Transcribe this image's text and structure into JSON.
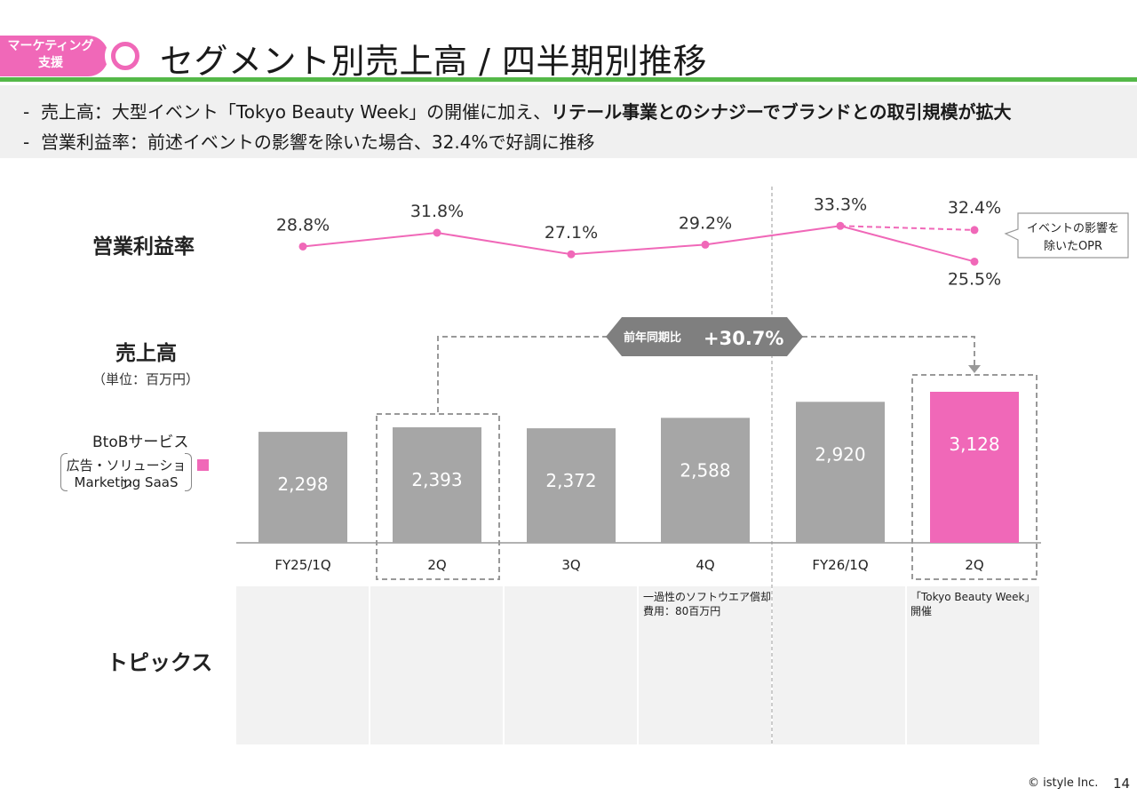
{
  "header": {
    "tag_line1": "マーケティング",
    "tag_line2": "支援",
    "title": "セグメント別売上高 / 四半期別推移"
  },
  "bullets": [
    {
      "dash": "-",
      "normal": "売上高：大型イベント「Tokyo Beauty Week」の開催に加え、",
      "bold": "リテール事業とのシナジーでブランドとの取引規模が拡大"
    },
    {
      "dash": "-",
      "normal": "営業利益率：前述イベントの影響を除いた場合、32.4%で好調に推移",
      "bold": ""
    }
  ],
  "labels": {
    "opm": "営業利益率",
    "sales": "売上高",
    "unit": "（単位：百万円）",
    "segment": "BtoBサービス",
    "legend_line1": "広告・ソリューション",
    "legend_line2": "Marketing SaaS",
    "topics": "トピックス"
  },
  "colors": {
    "accent": "#f068b8",
    "bar": "#a6a6a6",
    "green": "#54b848"
  },
  "yoy": {
    "prefix": "前年同期比",
    "value": "+30.7%"
  },
  "callout": {
    "line1": "イベントの影響を",
    "line2": "除いたOPR"
  },
  "topics": [
    {
      "quarter": "4Q",
      "line1": "一過性のソフトウエア償却",
      "line2": "費用：80百万円"
    },
    {
      "quarter": "2Q",
      "line1": "「Tokyo Beauty Week」",
      "line2": "開催"
    }
  ],
  "chart_data": {
    "type": "bar",
    "categories": [
      "FY25/1Q",
      "2Q",
      "3Q",
      "4Q",
      "FY26/1Q",
      "2Q"
    ],
    "values": [
      2298,
      2393,
      2372,
      2588,
      2920,
      3128
    ],
    "value_labels": [
      "2,298",
      "2,393",
      "2,372",
      "2,588",
      "2,920",
      "3,128"
    ],
    "opm_series": {
      "name": "営業利益率",
      "values": [
        28.8,
        31.8,
        27.1,
        29.2,
        33.3,
        25.5
      ],
      "labels": [
        "28.8%",
        "31.8%",
        "27.1%",
        "29.2%",
        "33.3%",
        "25.5%"
      ]
    },
    "opm_adjusted": {
      "name": "イベントの影響を除いたOPR",
      "value": 32.4,
      "label": "32.4%"
    }
  },
  "footer": {
    "copyright": "© istyle Inc.",
    "page": "14"
  }
}
